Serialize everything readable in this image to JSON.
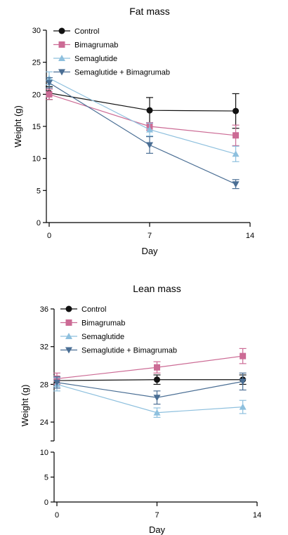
{
  "chart_data": [
    {
      "type": "line",
      "title": "Fat mass",
      "xlabel": "Day",
      "ylabel": "Weight (g)",
      "xlim": [
        0,
        14
      ],
      "ylim": [
        0,
        30
      ],
      "xticks": [
        0,
        7,
        14
      ],
      "yticks": [
        0,
        5,
        10,
        15,
        20,
        25,
        30
      ],
      "x": [
        0,
        7,
        13
      ],
      "grid": false,
      "legend": "top-left",
      "series": [
        {
          "name": "Control",
          "color": "#111111",
          "marker": "circle",
          "values": [
            20.2,
            17.5,
            17.4
          ],
          "errors": [
            1.0,
            2.0,
            2.7
          ]
        },
        {
          "name": "Bimagrumab",
          "color": "#cc6b95",
          "marker": "square",
          "values": [
            20.0,
            15.0,
            13.6
          ],
          "errors": [
            0.8,
            0.6,
            1.6
          ]
        },
        {
          "name": "Semaglutide",
          "color": "#8ec0de",
          "marker": "triangle-up",
          "values": [
            22.5,
            14.5,
            10.7
          ],
          "errors": [
            1.0,
            1.0,
            1.2
          ]
        },
        {
          "name": "Semaglutide + Bimagrumab",
          "color": "#4a6e94",
          "marker": "triangle-down",
          "values": [
            21.8,
            12.1,
            6.0
          ],
          "errors": [
            0.8,
            1.3,
            0.7
          ]
        }
      ]
    },
    {
      "type": "line",
      "title": "Lean mass",
      "xlabel": "Day",
      "ylabel": "Weight (g)",
      "xlim": [
        0,
        14
      ],
      "ylim": [
        0,
        36
      ],
      "axis_break": [
        10,
        22
      ],
      "xticks": [
        0,
        7,
        14
      ],
      "yticks": [
        0,
        5,
        10,
        24,
        28,
        32,
        36
      ],
      "x": [
        0,
        7,
        13
      ],
      "grid": false,
      "legend": "top-left",
      "series": [
        {
          "name": "Control",
          "color": "#111111",
          "marker": "circle",
          "values": [
            28.4,
            28.5,
            28.5
          ],
          "errors": [
            0.4,
            0.5,
            0.5
          ]
        },
        {
          "name": "Bimagrumab",
          "color": "#cc6b95",
          "marker": "square",
          "values": [
            28.6,
            29.8,
            31.0
          ],
          "errors": [
            0.6,
            0.6,
            0.8
          ]
        },
        {
          "name": "Semaglutide",
          "color": "#8ec0de",
          "marker": "triangle-up",
          "values": [
            28.0,
            25.0,
            25.6
          ],
          "errors": [
            0.7,
            0.5,
            0.7
          ]
        },
        {
          "name": "Semaglutide + Bimagrumab",
          "color": "#4a6e94",
          "marker": "triangle-down",
          "values": [
            28.2,
            26.6,
            28.3
          ],
          "errors": [
            0.6,
            0.7,
            0.9
          ]
        }
      ]
    }
  ]
}
